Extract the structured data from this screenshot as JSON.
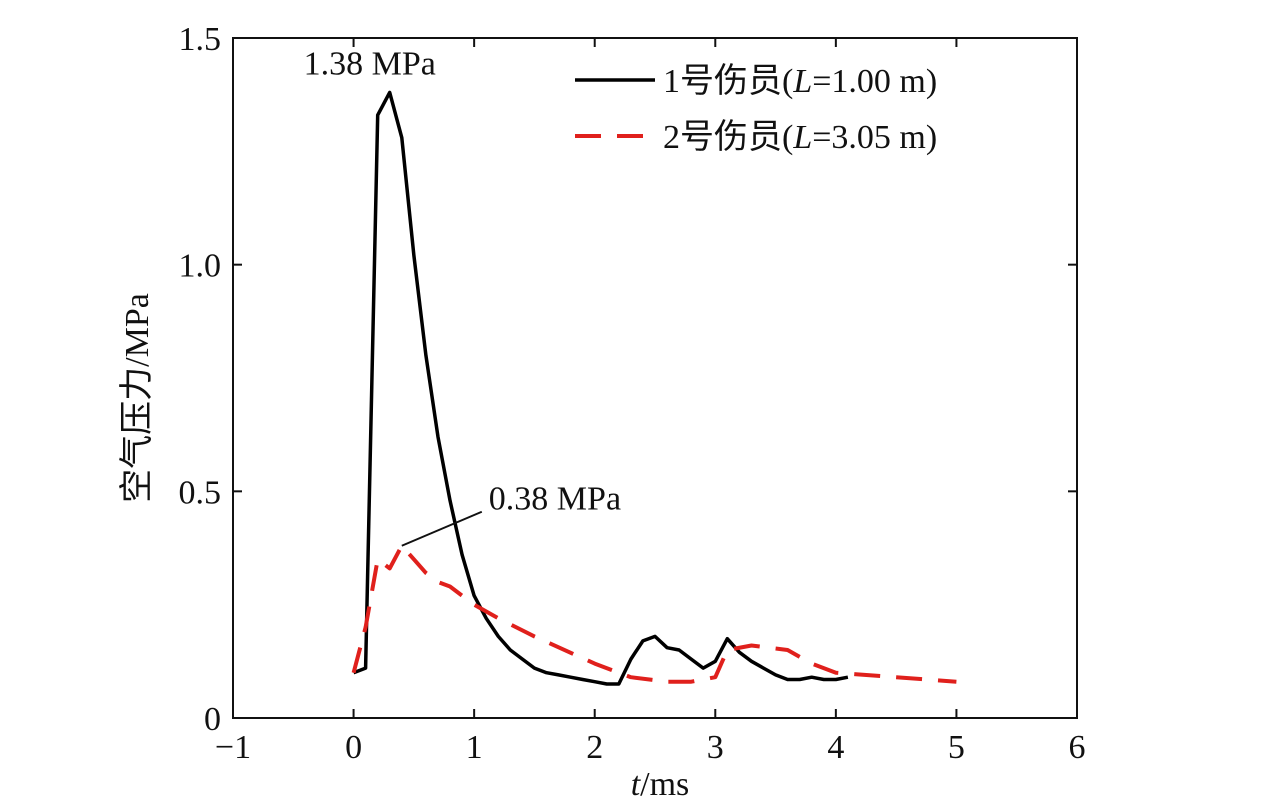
{
  "chart_data": {
    "type": "line",
    "title": "",
    "xlabel": "t/ms",
    "xlabel_italic": "t",
    "xlabel_rest": "/ms",
    "ylabel": "空气压力/MPa",
    "xlim": [
      -1,
      6
    ],
    "ylim": [
      0,
      1.5
    ],
    "x_ticks": [
      -1,
      0,
      1,
      2,
      3,
      4,
      5,
      6
    ],
    "x_tick_labels": [
      "−1",
      "0",
      "1",
      "2",
      "3",
      "4",
      "5",
      "6"
    ],
    "y_ticks": [
      0,
      0.5,
      1.0,
      1.5
    ],
    "y_tick_labels": [
      "0",
      "0.5",
      "1.0",
      "1.5"
    ],
    "grid": false,
    "legend_position": "top-right",
    "series": [
      {
        "name": "1号伤员(L=1.00 m)",
        "legend_prefix": "1号伤员(",
        "legend_italic": "L",
        "legend_suffix": "=1.00 m)",
        "color": "#000000",
        "style": "solid",
        "x": [
          0,
          0.1,
          0.2,
          0.3,
          0.4,
          0.5,
          0.6,
          0.7,
          0.8,
          0.9,
          1.0,
          1.1,
          1.2,
          1.3,
          1.4,
          1.5,
          1.6,
          1.7,
          1.8,
          1.9,
          2.0,
          2.1,
          2.2,
          2.3,
          2.4,
          2.5,
          2.6,
          2.7,
          2.8,
          2.9,
          3.0,
          3.1,
          3.2,
          3.3,
          3.4,
          3.5,
          3.6,
          3.7,
          3.8,
          3.9,
          4.0,
          4.1
        ],
        "y": [
          0.1,
          0.11,
          1.33,
          1.38,
          1.28,
          1.02,
          0.8,
          0.62,
          0.48,
          0.36,
          0.27,
          0.22,
          0.18,
          0.15,
          0.13,
          0.11,
          0.1,
          0.095,
          0.09,
          0.085,
          0.08,
          0.075,
          0.075,
          0.13,
          0.17,
          0.18,
          0.155,
          0.15,
          0.13,
          0.11,
          0.125,
          0.175,
          0.145,
          0.125,
          0.11,
          0.095,
          0.085,
          0.085,
          0.09,
          0.085,
          0.085,
          0.09
        ]
      },
      {
        "name": "2号伤员(L=3.05 m)",
        "legend_prefix": "2号伤员(",
        "legend_italic": "L",
        "legend_suffix": "=3.05 m)",
        "color": "#e0201c",
        "style": "dashed",
        "x": [
          0,
          0.1,
          0.2,
          0.3,
          0.4,
          0.5,
          0.6,
          0.7,
          0.8,
          1.0,
          1.2,
          1.5,
          2.0,
          2.3,
          2.6,
          2.8,
          3.0,
          3.1,
          3.3,
          3.6,
          3.8,
          4.0,
          4.5,
          5.0
        ],
        "y": [
          0.1,
          0.2,
          0.35,
          0.33,
          0.38,
          0.35,
          0.32,
          0.3,
          0.29,
          0.25,
          0.22,
          0.18,
          0.12,
          0.09,
          0.08,
          0.08,
          0.09,
          0.15,
          0.16,
          0.15,
          0.12,
          0.1,
          0.09,
          0.08
        ]
      }
    ],
    "annotations": [
      {
        "text": "1.38 MPa",
        "x": 0.3,
        "y": 1.38
      },
      {
        "text": "0.38 MPa",
        "x": 0.4,
        "y": 0.38
      }
    ]
  }
}
